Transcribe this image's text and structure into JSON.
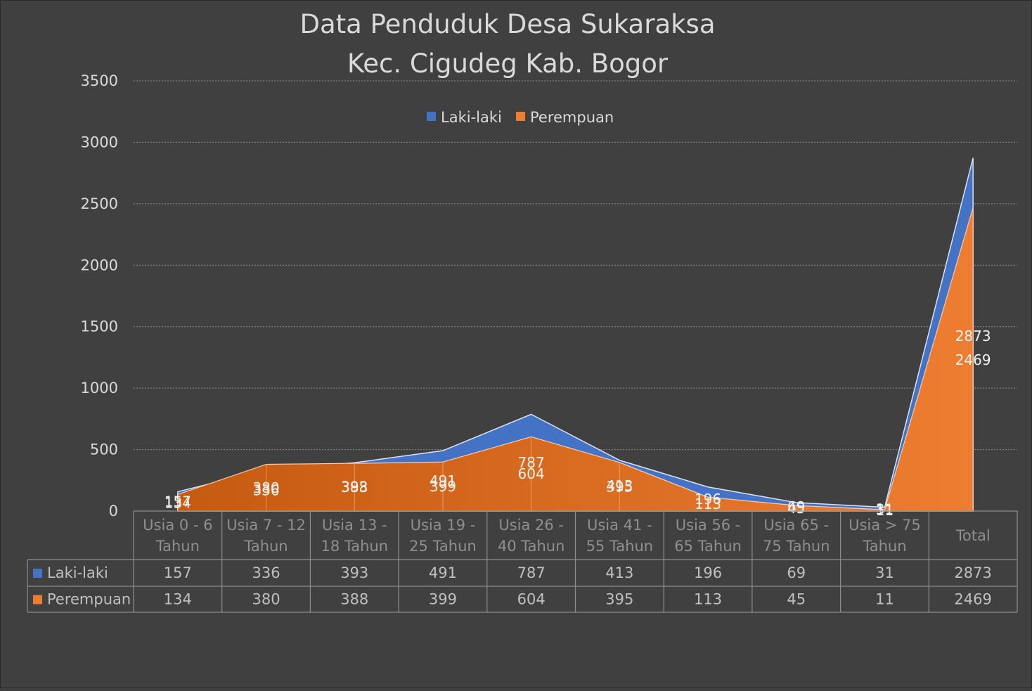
{
  "chart_data": {
    "type": "area",
    "title": "Data Penduduk Desa Sukaraksa",
    "subtitle": "Kec. Cigudeg Kab. Bogor",
    "categories": [
      [
        "Usia 0 - 6",
        "Tahun"
      ],
      [
        "Usia 7 - 12",
        "Tahun"
      ],
      [
        "Usia 13 -",
        "18 Tahun"
      ],
      [
        "Usia 19 -",
        "25 Tahun"
      ],
      [
        "Usia 26 -",
        "40 Tahun"
      ],
      [
        "Usia 41 -",
        "55 Tahun"
      ],
      [
        "Usia 56 -",
        "65 Tahun"
      ],
      [
        "Usia 65 -",
        "75 Tahun"
      ],
      [
        "Usia > 75",
        "Tahun"
      ],
      [
        "Total"
      ]
    ],
    "series": [
      {
        "name": "Laki-laki",
        "color": "#4472c4",
        "values": [
          157,
          336,
          393,
          491,
          787,
          413,
          196,
          69,
          31,
          2873
        ]
      },
      {
        "name": "Perempuan",
        "color": "#ed7d31",
        "values": [
          134,
          380,
          388,
          399,
          604,
          395,
          113,
          45,
          11,
          2469
        ]
      }
    ],
    "yticks": [
      "0",
      "500",
      "1000",
      "1500",
      "2000",
      "2500",
      "3000",
      "3500"
    ],
    "ylim": [
      0,
      3500
    ],
    "grid": true,
    "legend": "top-center",
    "data_table": true
  }
}
